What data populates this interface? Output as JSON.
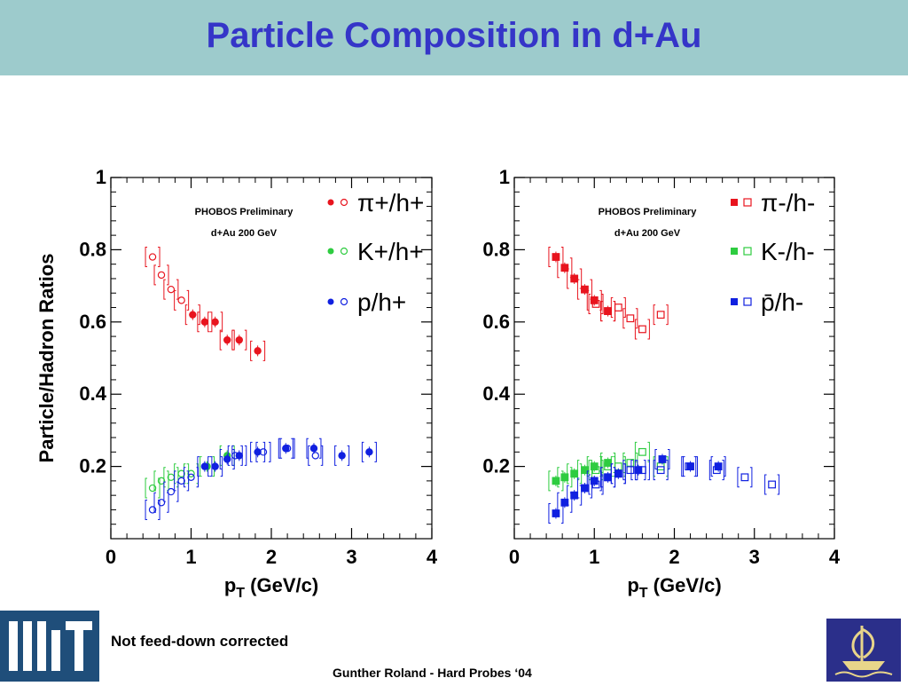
{
  "header": {
    "title": "Particle Composition in d+Au"
  },
  "footer": {
    "footnote": "Not feed-down corrected",
    "credit": "Gunther Roland - Hard Probes ‘04"
  },
  "colors": {
    "header_bg": "#9dcbcc",
    "title": "#3535c8",
    "red": "#e8141e",
    "green": "#2ecc40",
    "blue": "#1020e0"
  },
  "chart_data": [
    {
      "type": "scatter",
      "ylabel": "Particle/Hadron Ratios",
      "xlabel": "p_T (GeV/c)",
      "xlim": [
        0,
        4
      ],
      "ylim": [
        0,
        1
      ],
      "xticks": [
        "0",
        "1",
        "2",
        "3",
        "4"
      ],
      "yticks": [
        "0.2",
        "0.4",
        "0.6",
        "0.8",
        "1"
      ],
      "annotations": [
        "PHOBOS Preliminary",
        "d+Au 200 GeV"
      ],
      "legend": [
        {
          "label": "π+/h+",
          "color": "#e8141e"
        },
        {
          "label": "K+/h+",
          "color": "#2ecc40"
        },
        {
          "label": "p/h+",
          "color": "#1020e0"
        }
      ],
      "series": [
        {
          "color": "#e8141e",
          "filled": false,
          "x": [
            0.52,
            0.63,
            0.75,
            0.88
          ],
          "y": [
            0.78,
            0.73,
            0.69,
            0.66
          ]
        },
        {
          "color": "#e8141e",
          "filled": true,
          "x": [
            1.02,
            1.17,
            1.3,
            1.45,
            1.6,
            1.83
          ],
          "y": [
            0.62,
            0.6,
            0.6,
            0.55,
            0.55,
            0.52
          ]
        },
        {
          "color": "#2ecc40",
          "filled": false,
          "x": [
            0.52,
            0.63,
            0.75,
            0.88,
            1.0
          ],
          "y": [
            0.14,
            0.16,
            0.17,
            0.18,
            0.18
          ]
        },
        {
          "color": "#2ecc40",
          "filled": true,
          "x": [
            1.2,
            1.45
          ],
          "y": [
            0.2,
            0.23
          ]
        },
        {
          "color": "#1020e0",
          "filled": false,
          "x": [
            0.52,
            0.63,
            0.75,
            0.88,
            1.0,
            1.55,
            1.9,
            2.2,
            2.55
          ],
          "y": [
            0.08,
            0.1,
            0.13,
            0.16,
            0.17,
            0.23,
            0.24,
            0.25,
            0.23
          ]
        },
        {
          "color": "#1020e0",
          "filled": true,
          "x": [
            1.17,
            1.3,
            1.45,
            1.6,
            1.83,
            2.18,
            2.53,
            2.88,
            3.22
          ],
          "y": [
            0.2,
            0.2,
            0.22,
            0.23,
            0.24,
            0.25,
            0.25,
            0.23,
            0.24
          ]
        }
      ]
    },
    {
      "type": "scatter",
      "ylabel": "",
      "xlabel": "p_T (GeV/c)",
      "xlim": [
        0,
        4
      ],
      "ylim": [
        0,
        1
      ],
      "xticks": [
        "0",
        "1",
        "2",
        "3",
        "4"
      ],
      "yticks": [
        "0.2",
        "0.4",
        "0.6",
        "0.8",
        "1"
      ],
      "annotations": [
        "PHOBOS Preliminary",
        "d+Au 200 GeV"
      ],
      "legend": [
        {
          "label": "π-/h-",
          "color": "#e8141e"
        },
        {
          "label": "K-/h-",
          "color": "#2ecc40"
        },
        {
          "label": "p̄/h-",
          "color": "#1020e0"
        }
      ],
      "series": [
        {
          "color": "#e8141e",
          "filled": true,
          "x": [
            0.52,
            0.63,
            0.75,
            0.88,
            1.0,
            1.17
          ],
          "y": [
            0.78,
            0.75,
            0.72,
            0.69,
            0.66,
            0.63
          ]
        },
        {
          "color": "#e8141e",
          "filled": false,
          "x": [
            1.02,
            1.17,
            1.3,
            1.45,
            1.6,
            1.83
          ],
          "y": [
            0.65,
            0.63,
            0.64,
            0.61,
            0.58,
            0.62
          ]
        },
        {
          "color": "#2ecc40",
          "filled": true,
          "x": [
            0.52,
            0.63,
            0.75,
            0.88,
            1.0,
            1.17
          ],
          "y": [
            0.16,
            0.17,
            0.18,
            0.19,
            0.2,
            0.21
          ]
        },
        {
          "color": "#2ecc40",
          "filled": false,
          "x": [
            1.02,
            1.17,
            1.3,
            1.45,
            1.6,
            1.83
          ],
          "y": [
            0.19,
            0.2,
            0.2,
            0.21,
            0.24,
            0.2
          ]
        },
        {
          "color": "#1020e0",
          "filled": true,
          "x": [
            0.52,
            0.63,
            0.75,
            0.88,
            1.0,
            1.17,
            1.3,
            1.55,
            1.85,
            2.2,
            2.55
          ],
          "y": [
            0.07,
            0.1,
            0.12,
            0.14,
            0.16,
            0.17,
            0.18,
            0.19,
            0.22,
            0.2,
            0.2
          ]
        },
        {
          "color": "#1020e0",
          "filled": false,
          "x": [
            1.02,
            1.17,
            1.3,
            1.45,
            1.6,
            1.83,
            2.18,
            2.53,
            2.88,
            3.22
          ],
          "y": [
            0.15,
            0.17,
            0.18,
            0.19,
            0.19,
            0.19,
            0.2,
            0.19,
            0.17,
            0.15
          ]
        }
      ]
    }
  ]
}
